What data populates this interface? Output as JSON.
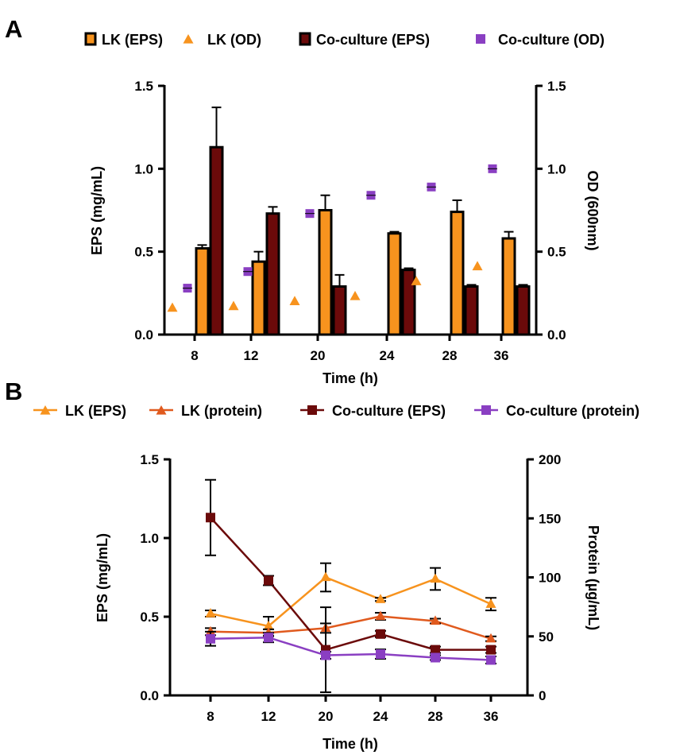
{
  "colors": {
    "lk_eps": "#F7931E",
    "lk_protein": "#E05A1E",
    "co_eps": "#6B0A0A",
    "co_od": "#8A3FC2",
    "co_protein": "#8A3FC2",
    "axis": "#000000"
  },
  "chart_data": [
    {
      "panel": "A",
      "type": "bar",
      "categories": [
        "8",
        "12",
        "20",
        "24",
        "28",
        "36"
      ],
      "xlabel": "Time (h)",
      "ylabel": "EPS (mg/mL)",
      "ylabel_right": "OD (600nm)",
      "ylim": [
        0,
        1.5
      ],
      "ylim_right": [
        0,
        1.5
      ],
      "yticks": [
        "0.0",
        "0.5",
        "1.0",
        "1.5"
      ],
      "yticks_right": [
        "0.0",
        "0.5",
        "1.0",
        "1.5"
      ],
      "legend": [
        "LK (EPS)",
        "LK (OD)",
        "Co-culture (EPS)",
        "Co-culture (OD)"
      ],
      "series": [
        {
          "name": "LK (EPS)",
          "kind": "bar",
          "values": [
            0.52,
            0.44,
            0.75,
            0.61,
            0.74,
            0.58
          ],
          "errors": [
            0.02,
            0.06,
            0.09,
            0.01,
            0.07,
            0.04
          ]
        },
        {
          "name": "Co-culture (EPS)",
          "kind": "bar",
          "values": [
            1.13,
            0.73,
            0.29,
            0.39,
            0.29,
            0.29
          ],
          "errors": [
            0.24,
            0.04,
            0.07,
            0.01,
            0.01,
            0.01
          ]
        },
        {
          "name": "LK (OD)",
          "kind": "marker",
          "axis": "right",
          "values": [
            0.16,
            0.17,
            0.2,
            0.23,
            0.32,
            0.41
          ]
        },
        {
          "name": "Co-culture (OD)",
          "kind": "marker",
          "axis": "right",
          "values": [
            0.28,
            0.38,
            0.73,
            0.84,
            0.89,
            1.0
          ]
        }
      ]
    },
    {
      "panel": "B",
      "type": "line",
      "categories": [
        "8",
        "12",
        "20",
        "24",
        "28",
        "36"
      ],
      "xlabel": "Time (h)",
      "ylabel": "EPS (mg/mL)",
      "ylabel_right": "Protein (µg/mL)",
      "ylim": [
        0,
        1.5
      ],
      "ylim_right": [
        0,
        200
      ],
      "yticks": [
        "0.0",
        "0.5",
        "1.0",
        "1.5"
      ],
      "yticks_right": [
        "0",
        "50",
        "100",
        "150",
        "200"
      ],
      "legend": [
        "LK (EPS)",
        "LK (protein)",
        "Co-culture (EPS)",
        "Co-culture (protein)"
      ],
      "series": [
        {
          "name": "LK (EPS)",
          "axis": "left",
          "marker": "triangle",
          "values": [
            0.52,
            0.44,
            0.75,
            0.61,
            0.74,
            0.58
          ],
          "errors": [
            0.02,
            0.06,
            0.09,
            0.01,
            0.07,
            0.04
          ]
        },
        {
          "name": "LK (protein)",
          "axis": "right",
          "marker": "triangle",
          "values": [
            54,
            53,
            57,
            67,
            63,
            48
          ],
          "errors": [
            3,
            3,
            4,
            3,
            2,
            2
          ]
        },
        {
          "name": "Co-culture (EPS)",
          "axis": "left",
          "marker": "square",
          "values": [
            1.13,
            0.73,
            0.29,
            0.39,
            0.29,
            0.29
          ],
          "errors": [
            0.24,
            0.03,
            0.27,
            0.02,
            0.02,
            0.02
          ]
        },
        {
          "name": "Co-culture (protein)",
          "axis": "right",
          "marker": "square",
          "values": [
            48,
            49,
            34,
            35,
            32,
            30
          ],
          "errors": [
            6,
            4,
            3,
            4,
            2,
            3
          ]
        }
      ]
    }
  ]
}
